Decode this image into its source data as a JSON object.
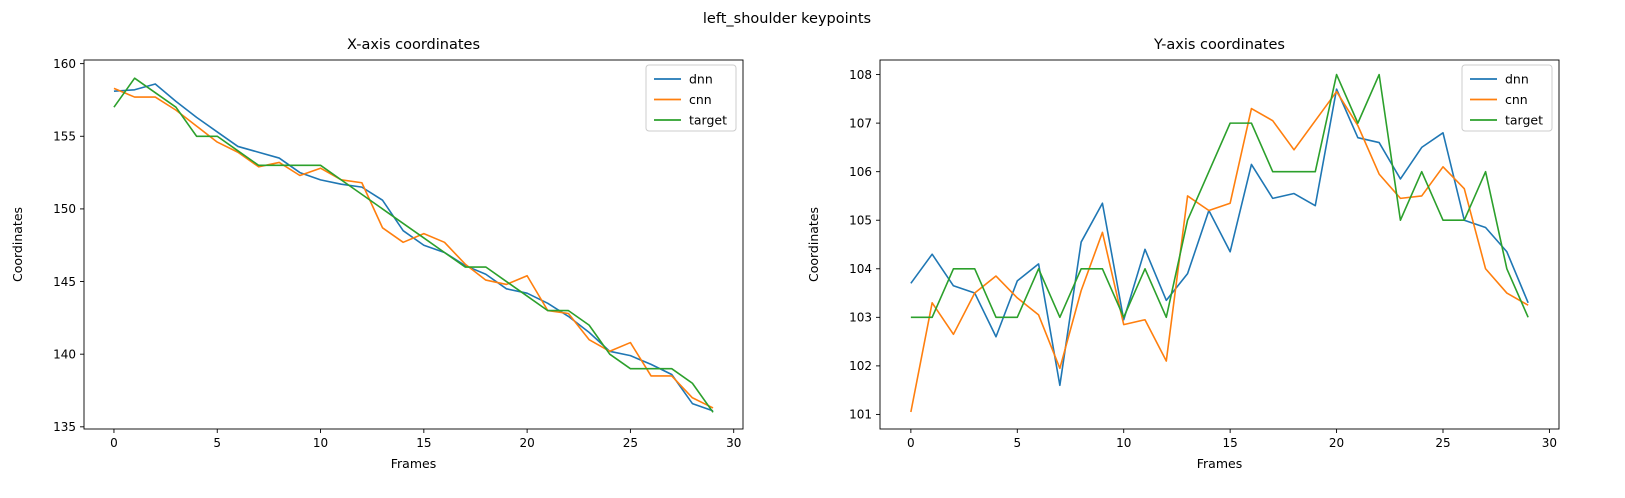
{
  "figure": {
    "suptitle": "left_shoulder keypoints"
  },
  "colors": {
    "dnn": "#1f77b4",
    "cnn": "#ff7f0e",
    "target": "#2ca02c"
  },
  "chart_data": [
    {
      "type": "line",
      "title": "X-axis coordinates",
      "xlabel": "Frames",
      "ylabel": "Coordinates",
      "xlim": [
        -1.45,
        30.45
      ],
      "ylim": [
        134.85,
        160.25
      ],
      "xticks": [
        0,
        5,
        10,
        15,
        20,
        25,
        30
      ],
      "yticks": [
        135,
        140,
        145,
        150,
        155,
        160
      ],
      "grid": false,
      "legend": "top-right",
      "x": [
        0,
        1,
        2,
        3,
        4,
        5,
        6,
        7,
        8,
        9,
        10,
        11,
        12,
        13,
        14,
        15,
        16,
        17,
        18,
        19,
        20,
        21,
        22,
        23,
        24,
        25,
        26,
        27,
        28,
        29
      ],
      "series": [
        {
          "name": "dnn",
          "color": "#1f77b4",
          "values": [
            158.1,
            158.2,
            158.6,
            157.4,
            156.3,
            155.3,
            154.3,
            153.9,
            153.5,
            152.5,
            152.0,
            151.7,
            151.5,
            150.6,
            148.5,
            147.5,
            147.0,
            146.1,
            145.5,
            144.5,
            144.2,
            143.5,
            142.6,
            141.5,
            140.2,
            139.9,
            139.3,
            138.6,
            136.6,
            136.1
          ]
        },
        {
          "name": "cnn",
          "color": "#ff7f0e",
          "values": [
            158.3,
            157.7,
            157.7,
            156.8,
            155.7,
            154.6,
            153.9,
            152.9,
            153.2,
            152.3,
            152.8,
            152.0,
            151.8,
            148.7,
            147.7,
            148.3,
            147.7,
            146.2,
            145.1,
            144.8,
            145.4,
            143.0,
            142.8,
            141.0,
            140.2,
            140.8,
            138.5,
            138.5,
            137.0,
            136.3
          ]
        },
        {
          "name": "target",
          "color": "#2ca02c",
          "values": [
            157,
            159,
            158,
            157,
            155,
            155,
            154,
            153,
            153,
            153,
            153,
            152,
            151,
            150,
            149,
            148,
            147,
            146,
            146,
            145,
            144,
            143,
            143,
            142,
            140,
            139,
            139,
            139,
            138,
            136
          ]
        }
      ]
    },
    {
      "type": "line",
      "title": "Y-axis coordinates",
      "xlabel": "Frames",
      "ylabel": "Coordinates",
      "xlim": [
        -1.45,
        30.45
      ],
      "ylim": [
        100.7,
        108.3
      ],
      "xticks": [
        0,
        5,
        10,
        15,
        20,
        25,
        30
      ],
      "yticks": [
        101,
        102,
        103,
        104,
        105,
        106,
        107,
        108
      ],
      "grid": false,
      "legend": "top-right",
      "x": [
        0,
        1,
        2,
        3,
        4,
        5,
        6,
        7,
        8,
        9,
        10,
        11,
        12,
        13,
        14,
        15,
        16,
        17,
        18,
        19,
        20,
        21,
        22,
        23,
        24,
        25,
        26,
        27,
        28,
        29
      ],
      "series": [
        {
          "name": "dnn",
          "color": "#1f77b4",
          "values": [
            103.7,
            104.3,
            103.65,
            103.5,
            102.6,
            103.75,
            104.1,
            101.6,
            104.55,
            105.35,
            102.95,
            104.4,
            103.35,
            103.9,
            105.2,
            104.35,
            106.15,
            105.45,
            105.55,
            105.3,
            107.7,
            106.7,
            106.6,
            105.85,
            106.5,
            106.8,
            105.0,
            104.85,
            104.35,
            103.3
          ]
        },
        {
          "name": "cnn",
          "color": "#ff7f0e",
          "values": [
            101.05,
            103.3,
            102.65,
            103.5,
            103.85,
            103.4,
            103.05,
            101.95,
            103.55,
            104.75,
            102.85,
            102.95,
            102.1,
            105.5,
            105.2,
            105.35,
            107.3,
            107.05,
            106.45,
            107.05,
            107.65,
            106.95,
            105.95,
            105.45,
            105.5,
            106.1,
            105.65,
            104.0,
            103.5,
            103.25
          ]
        },
        {
          "name": "target",
          "color": "#2ca02c",
          "values": [
            103,
            103,
            104,
            104,
            103,
            103,
            104,
            103,
            104,
            104,
            103,
            104,
            103,
            105,
            106,
            107,
            107,
            106,
            106,
            106,
            108,
            107,
            108,
            105,
            106,
            105,
            105,
            106,
            104,
            103
          ]
        }
      ]
    }
  ]
}
